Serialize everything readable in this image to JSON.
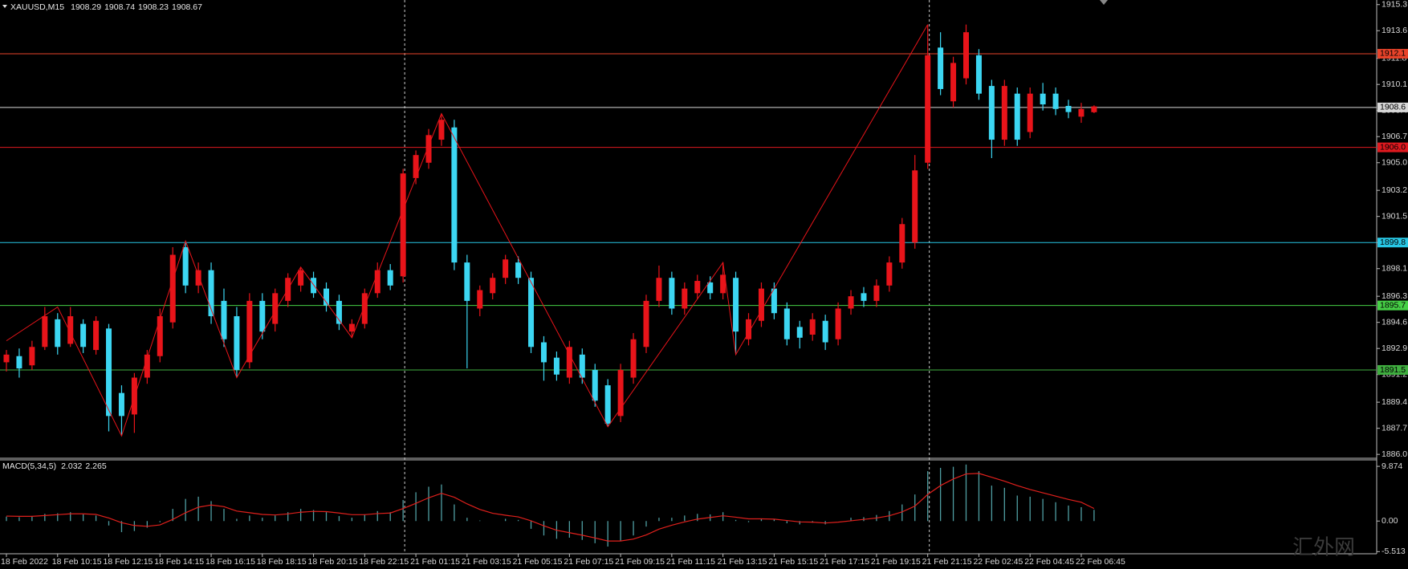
{
  "chart_data": {
    "type": "candlestick",
    "title": "XAUUSD,M15",
    "categories": [
      "18 Feb 2022",
      null,
      null,
      null,
      "18 Feb 10:15",
      null,
      null,
      null,
      "18 Feb 12:15",
      null,
      null,
      null,
      "18 Feb 14:15",
      null,
      null,
      null,
      "18 Feb 16:15",
      null,
      null,
      null,
      "18 Feb 18:15",
      null,
      null,
      null,
      "18 Feb 20:15",
      null,
      null,
      null,
      "18 Feb 22:15",
      null,
      null,
      null,
      "21 Feb 01:15",
      null,
      null,
      null,
      "21 Feb 03:15",
      null,
      null,
      null,
      "21 Feb 05:15",
      null,
      null,
      null,
      "21 Feb 07:15",
      null,
      null,
      null,
      "21 Feb 09:15",
      null,
      null,
      null,
      "21 Feb 11:15",
      null,
      null,
      null,
      "21 Feb 13:15",
      null,
      null,
      null,
      "21 Feb 15:15",
      null,
      null,
      null,
      "21 Feb 17:15",
      null,
      null,
      null,
      "21 Feb 19:15",
      null,
      null,
      null,
      "21 Feb 21:15",
      null,
      null,
      null,
      "22 Feb 02:45",
      null,
      null,
      null,
      "22 Feb 04:45",
      null,
      null,
      null,
      "22 Feb 06:45",
      null
    ],
    "open": [
      1892.0,
      1892.4,
      1891.8,
      1893.0,
      1894.8,
      1893.2,
      1894.5,
      1892.8,
      1894.2,
      1890.0,
      1888.6,
      1891.0,
      1892.4,
      1894.6,
      1899.5,
      1897.0,
      1898.0,
      1896.0,
      1895.0,
      1892.0,
      1896.0,
      1894.5,
      1896.0,
      1897.0,
      1897.5,
      1896.8,
      1896.0,
      1894.0,
      1894.5,
      1896.5,
      1898.0,
      1897.6,
      1904.0,
      1905.0,
      1906.5,
      1907.3,
      1898.5,
      1895.5,
      1896.5,
      1897.5,
      1898.5,
      1897.5,
      1893.3,
      1892.3,
      1891.0,
      1892.5,
      1891.5,
      1890.5,
      1888.5,
      1891.0,
      1893.0,
      1896.0,
      1897.5,
      1895.5,
      1896.5,
      1897.2,
      1896.5,
      1897.5,
      1893.5,
      1894.7,
      1896.8,
      1895.5,
      1894.3,
      1893.8,
      1894.7,
      1893.5,
      1895.5,
      1896.5,
      1896.0,
      1897.0,
      1898.5,
      1899.8,
      1905.0,
      1912.5,
      1909.0,
      1910.5,
      1912.0,
      1910.0,
      1906.5,
      1909.5,
      1907.0,
      1909.5,
      1909.5,
      1908.7,
      1908.0,
      1908.29
    ],
    "high": [
      1892.8,
      1892.9,
      1893.4,
      1895.6,
      1895.2,
      1895.6,
      1894.8,
      1895.0,
      1894.5,
      1890.5,
      1891.3,
      1892.8,
      1895.5,
      1899.5,
      1899.9,
      1898.5,
      1898.5,
      1896.8,
      1895.6,
      1896.5,
      1896.5,
      1896.8,
      1897.8,
      1898.2,
      1897.9,
      1897.2,
      1896.4,
      1894.8,
      1896.8,
      1898.5,
      1898.4,
      1904.6,
      1905.8,
      1907.2,
      1908.2,
      1907.8,
      1899.0,
      1897.0,
      1897.8,
      1899.0,
      1898.9,
      1897.9,
      1893.7,
      1892.7,
      1893.4,
      1892.9,
      1891.9,
      1890.9,
      1891.9,
      1893.9,
      1896.4,
      1898.3,
      1897.9,
      1897.2,
      1897.7,
      1897.6,
      1898.5,
      1897.9,
      1895.2,
      1897.2,
      1897.2,
      1895.9,
      1894.7,
      1895.2,
      1895.1,
      1895.9,
      1896.7,
      1896.9,
      1897.4,
      1898.9,
      1901.4,
      1905.5,
      1914.0,
      1913.5,
      1911.9,
      1914.0,
      1912.4,
      1910.4,
      1910.4,
      1909.9,
      1909.9,
      1910.2,
      1909.9,
      1909.1,
      1908.9,
      1908.74
    ],
    "low": [
      1891.4,
      1891.0,
      1891.5,
      1892.8,
      1892.5,
      1893.0,
      1892.6,
      1892.5,
      1887.5,
      1887.2,
      1887.4,
      1890.6,
      1892.0,
      1894.2,
      1896.5,
      1896.5,
      1894.5,
      1893.0,
      1891.0,
      1891.6,
      1893.5,
      1894.0,
      1895.6,
      1896.6,
      1896.2,
      1895.3,
      1894.1,
      1893.6,
      1894.2,
      1896.2,
      1896.7,
      1897.2,
      1903.6,
      1904.6,
      1906.1,
      1898.0,
      1891.6,
      1895.0,
      1896.1,
      1897.1,
      1897.1,
      1892.6,
      1890.8,
      1890.8,
      1890.6,
      1890.6,
      1889.1,
      1887.8,
      1888.1,
      1890.6,
      1892.6,
      1895.6,
      1895.1,
      1895.1,
      1896.1,
      1896.1,
      1896.1,
      1892.5,
      1893.1,
      1894.3,
      1894.8,
      1893.1,
      1892.9,
      1893.4,
      1892.8,
      1893.1,
      1895.1,
      1895.6,
      1895.6,
      1896.6,
      1898.1,
      1899.4,
      1904.6,
      1909.4,
      1908.6,
      1910.1,
      1909.1,
      1905.3,
      1906.1,
      1906.1,
      1906.6,
      1908.4,
      1908.1,
      1907.9,
      1907.6,
      1908.23
    ],
    "close": [
      1892.5,
      1891.6,
      1893.0,
      1895.0,
      1893.0,
      1895.0,
      1893.0,
      1894.7,
      1888.5,
      1888.5,
      1891.0,
      1892.5,
      1895.0,
      1899.0,
      1897.0,
      1898.0,
      1895.0,
      1893.5,
      1891.5,
      1896.0,
      1894.0,
      1896.5,
      1897.5,
      1898.0,
      1896.5,
      1895.7,
      1894.5,
      1894.5,
      1896.5,
      1898.0,
      1897.0,
      1904.3,
      1905.5,
      1906.8,
      1907.8,
      1898.5,
      1896.0,
      1896.7,
      1897.5,
      1898.7,
      1897.5,
      1893.0,
      1892.0,
      1891.2,
      1893.0,
      1891.0,
      1889.5,
      1888.0,
      1891.5,
      1893.5,
      1896.0,
      1897.5,
      1895.5,
      1896.8,
      1897.3,
      1896.5,
      1897.7,
      1894.0,
      1894.8,
      1896.8,
      1895.2,
      1893.5,
      1893.6,
      1894.8,
      1893.3,
      1895.5,
      1896.3,
      1896.0,
      1897.0,
      1898.5,
      1901.0,
      1904.5,
      1912.0,
      1909.8,
      1911.5,
      1913.5,
      1909.5,
      1906.5,
      1910.0,
      1906.5,
      1909.5,
      1908.8,
      1908.5,
      1908.3,
      1908.5,
      1908.67
    ],
    "up_color": "#e8141a",
    "down_color": "#3cd6f2",
    "ylim": [
      1885.8,
      1915.6
    ],
    "yticks": [
      1915.3,
      1913.6,
      1911.8,
      1910.1,
      1908.4,
      1906.7,
      {
        "value": 1905,
        "label": "1905.0"
      },
      1903.2,
      1901.5,
      1899.8,
      1898.1,
      1896.3,
      1894.6,
      1892.9,
      1891.2,
      1889.4,
      1887.7,
      {
        "value": 1886,
        "label": "1886.0"
      }
    ],
    "levels": [
      {
        "value": 1912.1,
        "label": "1912.1",
        "color": "#e8432a"
      },
      {
        "value": 1908.6,
        "label": "1908.6",
        "color": "#d8d8d8"
      },
      {
        "value": 1906,
        "label": "1906.0",
        "color": "#e0191f"
      },
      {
        "value": 1899.8,
        "label": "1899.8",
        "color": "#28c8e6"
      },
      {
        "value": 1895.7,
        "label": "1895.7",
        "color": "#46d046"
      },
      {
        "value": 1891.5,
        "label": "1891.5",
        "color": "#3fae3f"
      }
    ],
    "zigzag": {
      "color": "#e8141a",
      "x": [
        0,
        4,
        9,
        14,
        18,
        23,
        27,
        34,
        47,
        56,
        57,
        72
      ],
      "values": [
        1893.4,
        1895.6,
        1887.2,
        1899.9,
        1891.0,
        1898.2,
        1893.6,
        1908.2,
        1887.8,
        1898.5,
        1892.5,
        1914.0
      ]
    },
    "macd": {
      "title": "MACD(5,34,5)",
      "color": "#4f9ea2",
      "signal_color": "#e0201c",
      "values": [
        0.8,
        0.7,
        0.9,
        1.3,
        1.4,
        1.6,
        1.2,
        1.0,
        -0.8,
        -2.0,
        -1.8,
        -1.2,
        -0.2,
        2.2,
        4.0,
        4.4,
        3.6,
        2.2,
        0.4,
        1.0,
        0.6,
        1.0,
        1.6,
        2.2,
        2.0,
        1.6,
        0.9,
        0.6,
        1.2,
        1.8,
        1.6,
        3.8,
        5.2,
        6.2,
        6.6,
        3.0,
        0.6,
        0.1,
        0.0,
        0.4,
        0.2,
        -1.4,
        -2.6,
        -3.2,
        -3.0,
        -3.4,
        -4.0,
        -4.6,
        -3.6,
        -2.6,
        -1.0,
        0.6,
        0.6,
        1.0,
        1.3,
        1.2,
        1.6,
        0.2,
        -0.2,
        0.4,
        0.3,
        -0.4,
        -0.6,
        -0.3,
        -0.6,
        0.0,
        0.6,
        0.7,
        1.1,
        1.8,
        3.0,
        4.8,
        9.0,
        9.6,
        9.8,
        10.2,
        9.0,
        6.4,
        6.0,
        4.6,
        4.4,
        4.0,
        3.4,
        2.8,
        2.5,
        2.032
      ],
      "signal": [
        0.9,
        0.85,
        0.85,
        1.0,
        1.15,
        1.3,
        1.3,
        1.2,
        0.55,
        -0.3,
        -0.8,
        -0.95,
        -0.7,
        0.3,
        1.5,
        2.5,
        2.9,
        2.6,
        1.8,
        1.5,
        1.2,
        1.1,
        1.3,
        1.6,
        1.75,
        1.7,
        1.45,
        1.15,
        1.15,
        1.35,
        1.45,
        2.25,
        3.2,
        4.2,
        5.0,
        4.3,
        3.1,
        2.1,
        1.4,
        1.05,
        0.75,
        0.05,
        -0.85,
        -1.65,
        -2.1,
        -2.55,
        -3.05,
        -3.6,
        -3.6,
        -3.25,
        -2.5,
        -1.45,
        -0.75,
        -0.15,
        0.35,
        0.65,
        0.95,
        0.7,
        0.4,
        0.4,
        0.35,
        0.1,
        -0.15,
        -0.2,
        -0.35,
        -0.2,
        0.05,
        0.3,
        0.55,
        0.95,
        1.65,
        2.7,
        4.8,
        6.4,
        7.6,
        8.5,
        8.6,
        7.9,
        7.2,
        6.4,
        5.7,
        5.1,
        4.5,
        3.9,
        3.4,
        2.265
      ],
      "ylim": [
        -5.9,
        10.9
      ],
      "yticks": [
        9.874,
        {
          "value": 0,
          "label": "0.00"
        },
        -5.513
      ]
    },
    "watermark": "汇外网"
  }
}
